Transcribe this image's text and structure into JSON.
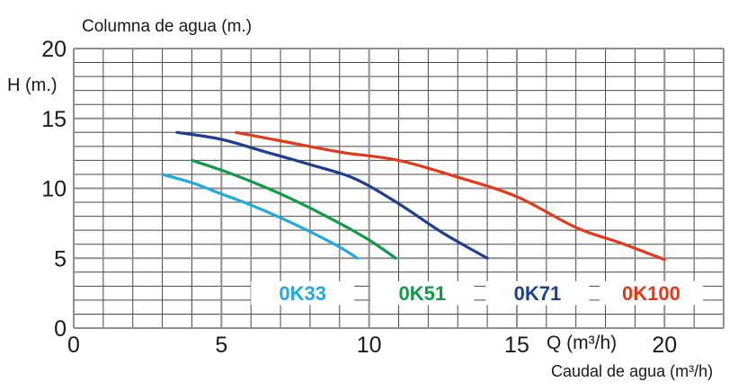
{
  "colors": {
    "background": "#FFFFFF",
    "grid_minor": "#484848",
    "grid_major": "#8F8F8F",
    "text": "#1A1A1A"
  },
  "chart_data": {
    "type": "line",
    "title": "Columna de agua (m.)",
    "y_axis_label": "H (m.)",
    "x_axis_label": "Q (m³/h)",
    "x_axis_sublabel": "Caudal de agua (m³/h)",
    "xlim": [
      0,
      22
    ],
    "ylim": [
      0,
      20
    ],
    "x_ticks": [
      0,
      5,
      10,
      15,
      20
    ],
    "y_ticks": [
      20,
      15,
      10,
      5,
      0
    ],
    "grid": {
      "minor_step": 1,
      "major_step": 5,
      "grid_on": true
    },
    "series": [
      {
        "name": "0K33",
        "color": "#25A7E0",
        "points": [
          [
            3,
            11
          ],
          [
            4,
            10.4
          ],
          [
            5,
            9.6
          ],
          [
            6,
            8.8
          ],
          [
            7,
            7.9
          ],
          [
            8,
            6.9
          ],
          [
            9,
            5.8
          ],
          [
            9.6,
            5.0
          ]
        ]
      },
      {
        "name": "0K51",
        "color": "#119B46",
        "points": [
          [
            4,
            12
          ],
          [
            5,
            11.3
          ],
          [
            6,
            10.5
          ],
          [
            7,
            9.6
          ],
          [
            8,
            8.6
          ],
          [
            9,
            7.5
          ],
          [
            10,
            6.3
          ],
          [
            10.9,
            5.0
          ]
        ]
      },
      {
        "name": "0K71",
        "color": "#1D3F8F",
        "points": [
          [
            3.5,
            14
          ],
          [
            5,
            13.5
          ],
          [
            6.5,
            12.6
          ],
          [
            8,
            11.7
          ],
          [
            9.5,
            10.7
          ],
          [
            11,
            8.9
          ],
          [
            12.5,
            6.8
          ],
          [
            14,
            5.0
          ]
        ]
      },
      {
        "name": "0K100",
        "color": "#E23A18",
        "points": [
          [
            5.5,
            14
          ],
          [
            7,
            13.4
          ],
          [
            9,
            12.6
          ],
          [
            11,
            12.0
          ],
          [
            13,
            10.8
          ],
          [
            15,
            9.4
          ],
          [
            17,
            7.2
          ],
          [
            18.5,
            6.1
          ],
          [
            20,
            4.9
          ]
        ]
      }
    ],
    "legend": {
      "position": "inside-bottom",
      "y_center": 2.5,
      "box_half_width": 1.75,
      "box_half_height": 0.85,
      "entries": [
        {
          "label": "0K33",
          "x_center": 7.75
        },
        {
          "label": "0K51",
          "x_center": 11.8
        },
        {
          "label": "0K71",
          "x_center": 15.7
        },
        {
          "label": "0K100",
          "x_center": 19.55
        }
      ]
    }
  }
}
